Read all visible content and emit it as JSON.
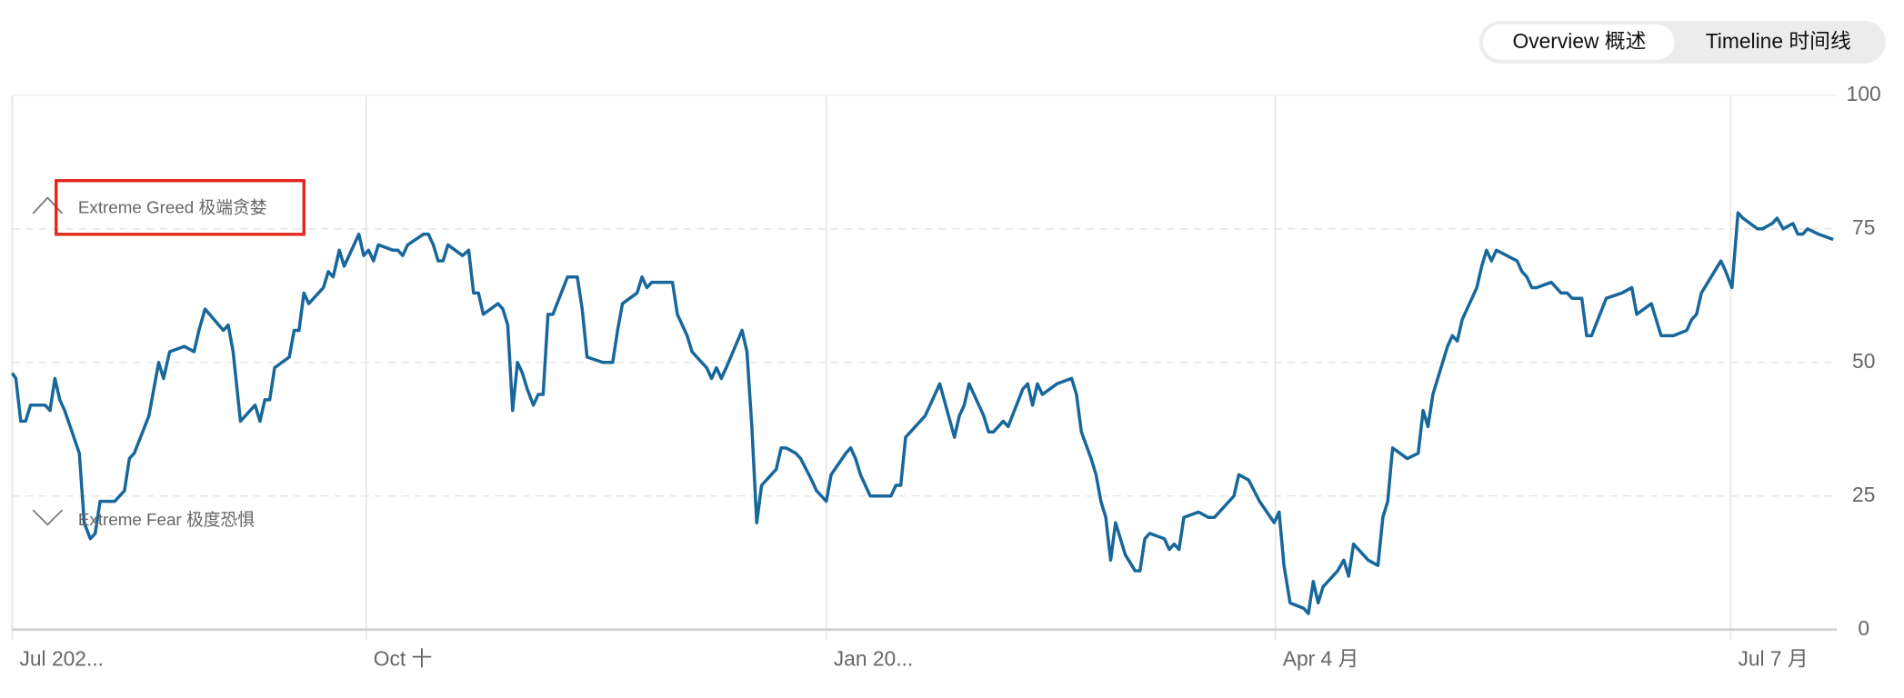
{
  "toggle": {
    "options": [
      "Overview  概述",
      "Timeline  时间线"
    ],
    "selected": 0
  },
  "chart_data": {
    "type": "line",
    "annotations": [
      "Extreme Greed  极端贪婪",
      "Extreme Fear  极度恐惧"
    ],
    "color": "#17679b",
    "x": [
      0,
      3,
      7,
      11,
      15,
      27,
      31,
      35,
      39,
      43,
      55,
      59,
      64,
      68,
      72,
      84,
      92,
      96,
      100,
      112,
      120,
      124,
      129,
      141,
      149,
      153,
      158,
      173,
      177,
      181,
      187,
      199,
      203,
      207,
      211,
      215,
      227,
      231,
      235,
      239,
      243,
      255,
      259,
      263,
      268,
      272,
      284,
      288,
      292,
      296,
      300,
      312,
      316,
      320,
      324,
      337,
      341,
      345,
      349,
      353,
      357,
      369,
      374,
      378,
      382,
      386,
      398,
      402,
      406,
      410,
      414,
      418,
      422,
      427,
      431,
      435,
      439,
      443,
      455,
      459,
      463,
      467,
      471,
      484,
      488,
      492,
      496,
      500,
      512,
      516,
      520,
      524,
      541,
      545,
      549,
      553,
      557,
      569,
      573,
      577,
      581,
      585,
      598,
      602,
      606,
      610,
      614,
      626,
      630,
      634,
      642,
      646,
      655,
      659,
      667,
      671,
      683,
      687,
      691,
      695,
      703,
      720,
      724,
      728,
      732,
      744,
      748,
      752,
      760,
      772,
      776,
      780,
      784,
      796,
      800,
      804,
      812,
      816,
      828,
      832,
      836,
      840,
      844,
      856,
      868,
      872,
      876,
      884,
      888,
      892,
      896,
      900,
      904,
      912,
      920,
      924,
      928,
      932,
      944,
      948,
      952,
      956,
      960,
      972,
      980,
      985,
      1001,
      1005,
      1013,
      1022,
      1034,
      1038,
      1042,
      1047,
      1058,
      1062,
      1066,
      1070,
      1074,
      1086,
      1091,
      1095,
      1099,
      1111,
      1119,
      1123,
      1127,
      1131,
      1143,
      1152,
      1156,
      1160,
      1164,
      1176,
      1180,
      1184,
      1188,
      1200,
      1204,
      1208,
      1212,
      1216,
      1233,
      1237,
      1241,
      1245,
      1249,
      1261,
      1265,
      1269,
      1274,
      1278,
      1286,
      1290,
      1294,
      1306,
      1319,
      1327,
      1331,
      1343,
      1351,
      1361,
      1372,
      1376,
      1380,
      1384,
      1400,
      1404,
      1409,
      1414,
      1418,
      1430,
      1434,
      1442,
      1446,
      1451,
      1459,
      1463,
      1467,
      1471,
      1480,
      1492
    ],
    "values": [
      48,
      47,
      39,
      39,
      42,
      42,
      41,
      47,
      43,
      41,
      33,
      20,
      17,
      18,
      24,
      24,
      26,
      32,
      33,
      40,
      50,
      47,
      52,
      53,
      52,
      56,
      60,
      56,
      57,
      52,
      39,
      42,
      39,
      43,
      43,
      49,
      51,
      56,
      56,
      63,
      61,
      64,
      67,
      66,
      71,
      68,
      74,
      70,
      71,
      69,
      72,
      71,
      71,
      70,
      72,
      74,
      74,
      72,
      69,
      69,
      72,
      70,
      71,
      63,
      63,
      59,
      61,
      60,
      57,
      41,
      50,
      48,
      45,
      42,
      44,
      44,
      59,
      59,
      66,
      66,
      66,
      60,
      51,
      50,
      50,
      50,
      56,
      61,
      63,
      66,
      64,
      65,
      65,
      59,
      57,
      55,
      52,
      49,
      47,
      49,
      47,
      49,
      56,
      52,
      38,
      20,
      27,
      30,
      34,
      34,
      33,
      32,
      28,
      26,
      24,
      29,
      33,
      34,
      32,
      29,
      25,
      25,
      27,
      27,
      36,
      39,
      40,
      42,
      46,
      36,
      40,
      42,
      46,
      40,
      37,
      37,
      39,
      38,
      45,
      46,
      42,
      46,
      44,
      46,
      47,
      44,
      37,
      32,
      29,
      24,
      21,
      13,
      20,
      14,
      11,
      11,
      17,
      18,
      17,
      15,
      16,
      15,
      21,
      22,
      21,
      21,
      25,
      29,
      28,
      24,
      20,
      22,
      12,
      5,
      4,
      3,
      9,
      5,
      8,
      11,
      13,
      10,
      16,
      13,
      12,
      21,
      24,
      34,
      32,
      33,
      41,
      38,
      44,
      53,
      55,
      54,
      58,
      64,
      68,
      71,
      69,
      71,
      69,
      67,
      66,
      64,
      64,
      65,
      64,
      63,
      63,
      62,
      62,
      55,
      55,
      62,
      63,
      64,
      59,
      61,
      55,
      55,
      56,
      58,
      59,
      63,
      69,
      67,
      64,
      78,
      77,
      75,
      75,
      76,
      77,
      75,
      76,
      74,
      74,
      75,
      74,
      73
    ],
    "xlim": [
      0,
      1495
    ],
    "xticks": [
      {
        "value": 0,
        "label": "Jul 202..."
      },
      {
        "value": 290,
        "label": "Oct  十"
      },
      {
        "value": 667,
        "label": "Jan 20..."
      },
      {
        "value": 1035,
        "label": "Apr  4 月"
      },
      {
        "value": 1408,
        "label": "Jul  7 月"
      }
    ],
    "ylim": [
      0,
      100
    ],
    "yticks": [
      0,
      25,
      50,
      75,
      100
    ],
    "grid": true
  }
}
